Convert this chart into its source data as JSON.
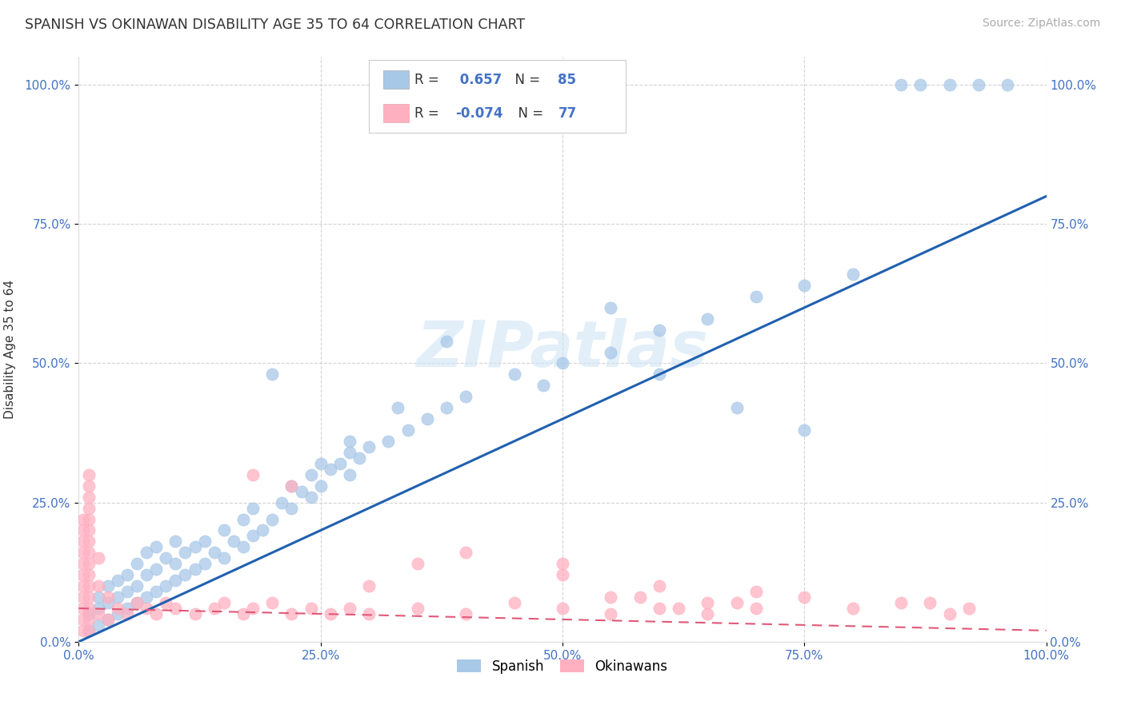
{
  "title": "SPANISH VS OKINAWAN DISABILITY AGE 35 TO 64 CORRELATION CHART",
  "source": "Source: ZipAtlas.com",
  "ylabel": "Disability Age 35 to 64",
  "watermark": "ZIPatlas",
  "legend_blue_label": "Spanish",
  "legend_pink_label": "Okinawans",
  "R_blue": 0.657,
  "N_blue": 85,
  "R_pink": -0.074,
  "N_pink": 77,
  "blue_color": "#a8c8e8",
  "pink_color": "#ffb0c0",
  "line_blue_color": "#2060b0",
  "line_pink_color": "#e05878",
  "bg_color": "#ffffff",
  "grid_color": "#c8c8c8",
  "tick_color": "#4472c4",
  "blue_x": [
    0.01,
    0.01,
    0.02,
    0.02,
    0.02,
    0.03,
    0.03,
    0.03,
    0.04,
    0.04,
    0.04,
    0.05,
    0.05,
    0.05,
    0.06,
    0.06,
    0.06,
    0.07,
    0.07,
    0.07,
    0.08,
    0.08,
    0.08,
    0.09,
    0.09,
    0.1,
    0.1,
    0.1,
    0.11,
    0.11,
    0.12,
    0.12,
    0.13,
    0.13,
    0.14,
    0.15,
    0.15,
    0.16,
    0.17,
    0.17,
    0.18,
    0.18,
    0.19,
    0.2,
    0.21,
    0.22,
    0.22,
    0.23,
    0.24,
    0.24,
    0.25,
    0.25,
    0.26,
    0.27,
    0.28,
    0.28,
    0.29,
    0.3,
    0.32,
    0.34,
    0.36,
    0.38,
    0.4,
    0.45,
    0.5,
    0.55,
    0.6,
    0.65,
    0.7,
    0.75,
    0.8,
    0.85,
    0.87,
    0.9,
    0.93,
    0.96,
    0.2,
    0.28,
    0.33,
    0.38,
    0.48,
    0.55,
    0.6,
    0.68,
    0.75
  ],
  "blue_y": [
    0.02,
    0.05,
    0.03,
    0.06,
    0.08,
    0.04,
    0.07,
    0.1,
    0.05,
    0.08,
    0.11,
    0.06,
    0.09,
    0.12,
    0.07,
    0.1,
    0.14,
    0.08,
    0.12,
    0.16,
    0.09,
    0.13,
    0.17,
    0.1,
    0.15,
    0.11,
    0.14,
    0.18,
    0.12,
    0.16,
    0.13,
    0.17,
    0.14,
    0.18,
    0.16,
    0.15,
    0.2,
    0.18,
    0.17,
    0.22,
    0.19,
    0.24,
    0.2,
    0.22,
    0.25,
    0.24,
    0.28,
    0.27,
    0.26,
    0.3,
    0.28,
    0.32,
    0.31,
    0.32,
    0.3,
    0.34,
    0.33,
    0.35,
    0.36,
    0.38,
    0.4,
    0.42,
    0.44,
    0.48,
    0.5,
    0.52,
    0.56,
    0.58,
    0.62,
    0.64,
    0.66,
    1.0,
    1.0,
    1.0,
    1.0,
    1.0,
    0.48,
    0.36,
    0.42,
    0.54,
    0.46,
    0.6,
    0.48,
    0.42,
    0.38
  ],
  "pink_x": [
    0.005,
    0.005,
    0.005,
    0.005,
    0.005,
    0.005,
    0.005,
    0.005,
    0.005,
    0.005,
    0.005,
    0.01,
    0.01,
    0.01,
    0.01,
    0.01,
    0.01,
    0.01,
    0.01,
    0.01,
    0.01,
    0.01,
    0.01,
    0.01,
    0.01,
    0.01,
    0.02,
    0.02,
    0.02,
    0.03,
    0.03,
    0.04,
    0.05,
    0.06,
    0.07,
    0.08,
    0.09,
    0.1,
    0.12,
    0.14,
    0.15,
    0.17,
    0.18,
    0.2,
    0.22,
    0.24,
    0.26,
    0.28,
    0.3,
    0.35,
    0.4,
    0.45,
    0.5,
    0.55,
    0.6,
    0.65,
    0.7,
    0.18,
    0.22,
    0.3,
    0.35,
    0.4,
    0.5,
    0.55,
    0.6,
    0.65,
    0.7,
    0.75,
    0.8,
    0.85,
    0.88,
    0.9,
    0.92,
    0.5,
    0.58,
    0.62,
    0.68
  ],
  "pink_y": [
    0.02,
    0.04,
    0.06,
    0.08,
    0.1,
    0.12,
    0.14,
    0.16,
    0.18,
    0.2,
    0.22,
    0.02,
    0.04,
    0.06,
    0.08,
    0.1,
    0.12,
    0.14,
    0.16,
    0.18,
    0.2,
    0.22,
    0.24,
    0.26,
    0.28,
    0.3,
    0.05,
    0.1,
    0.15,
    0.04,
    0.08,
    0.06,
    0.05,
    0.07,
    0.06,
    0.05,
    0.07,
    0.06,
    0.05,
    0.06,
    0.07,
    0.05,
    0.06,
    0.07,
    0.05,
    0.06,
    0.05,
    0.06,
    0.05,
    0.06,
    0.05,
    0.07,
    0.06,
    0.05,
    0.06,
    0.05,
    0.06,
    0.3,
    0.28,
    0.1,
    0.14,
    0.16,
    0.12,
    0.08,
    0.1,
    0.07,
    0.09,
    0.08,
    0.06,
    0.07,
    0.07,
    0.05,
    0.06,
    0.14,
    0.08,
    0.06,
    0.07
  ],
  "blue_line": [
    0.0,
    1.0,
    0.0,
    0.8
  ],
  "pink_line": [
    0.0,
    1.0,
    0.06,
    -0.04
  ],
  "axis_tick_labels": [
    "0.0%",
    "25.0%",
    "50.0%",
    "75.0%",
    "100.0%"
  ],
  "axis_tick_vals": [
    0.0,
    0.25,
    0.5,
    0.75,
    1.0
  ]
}
